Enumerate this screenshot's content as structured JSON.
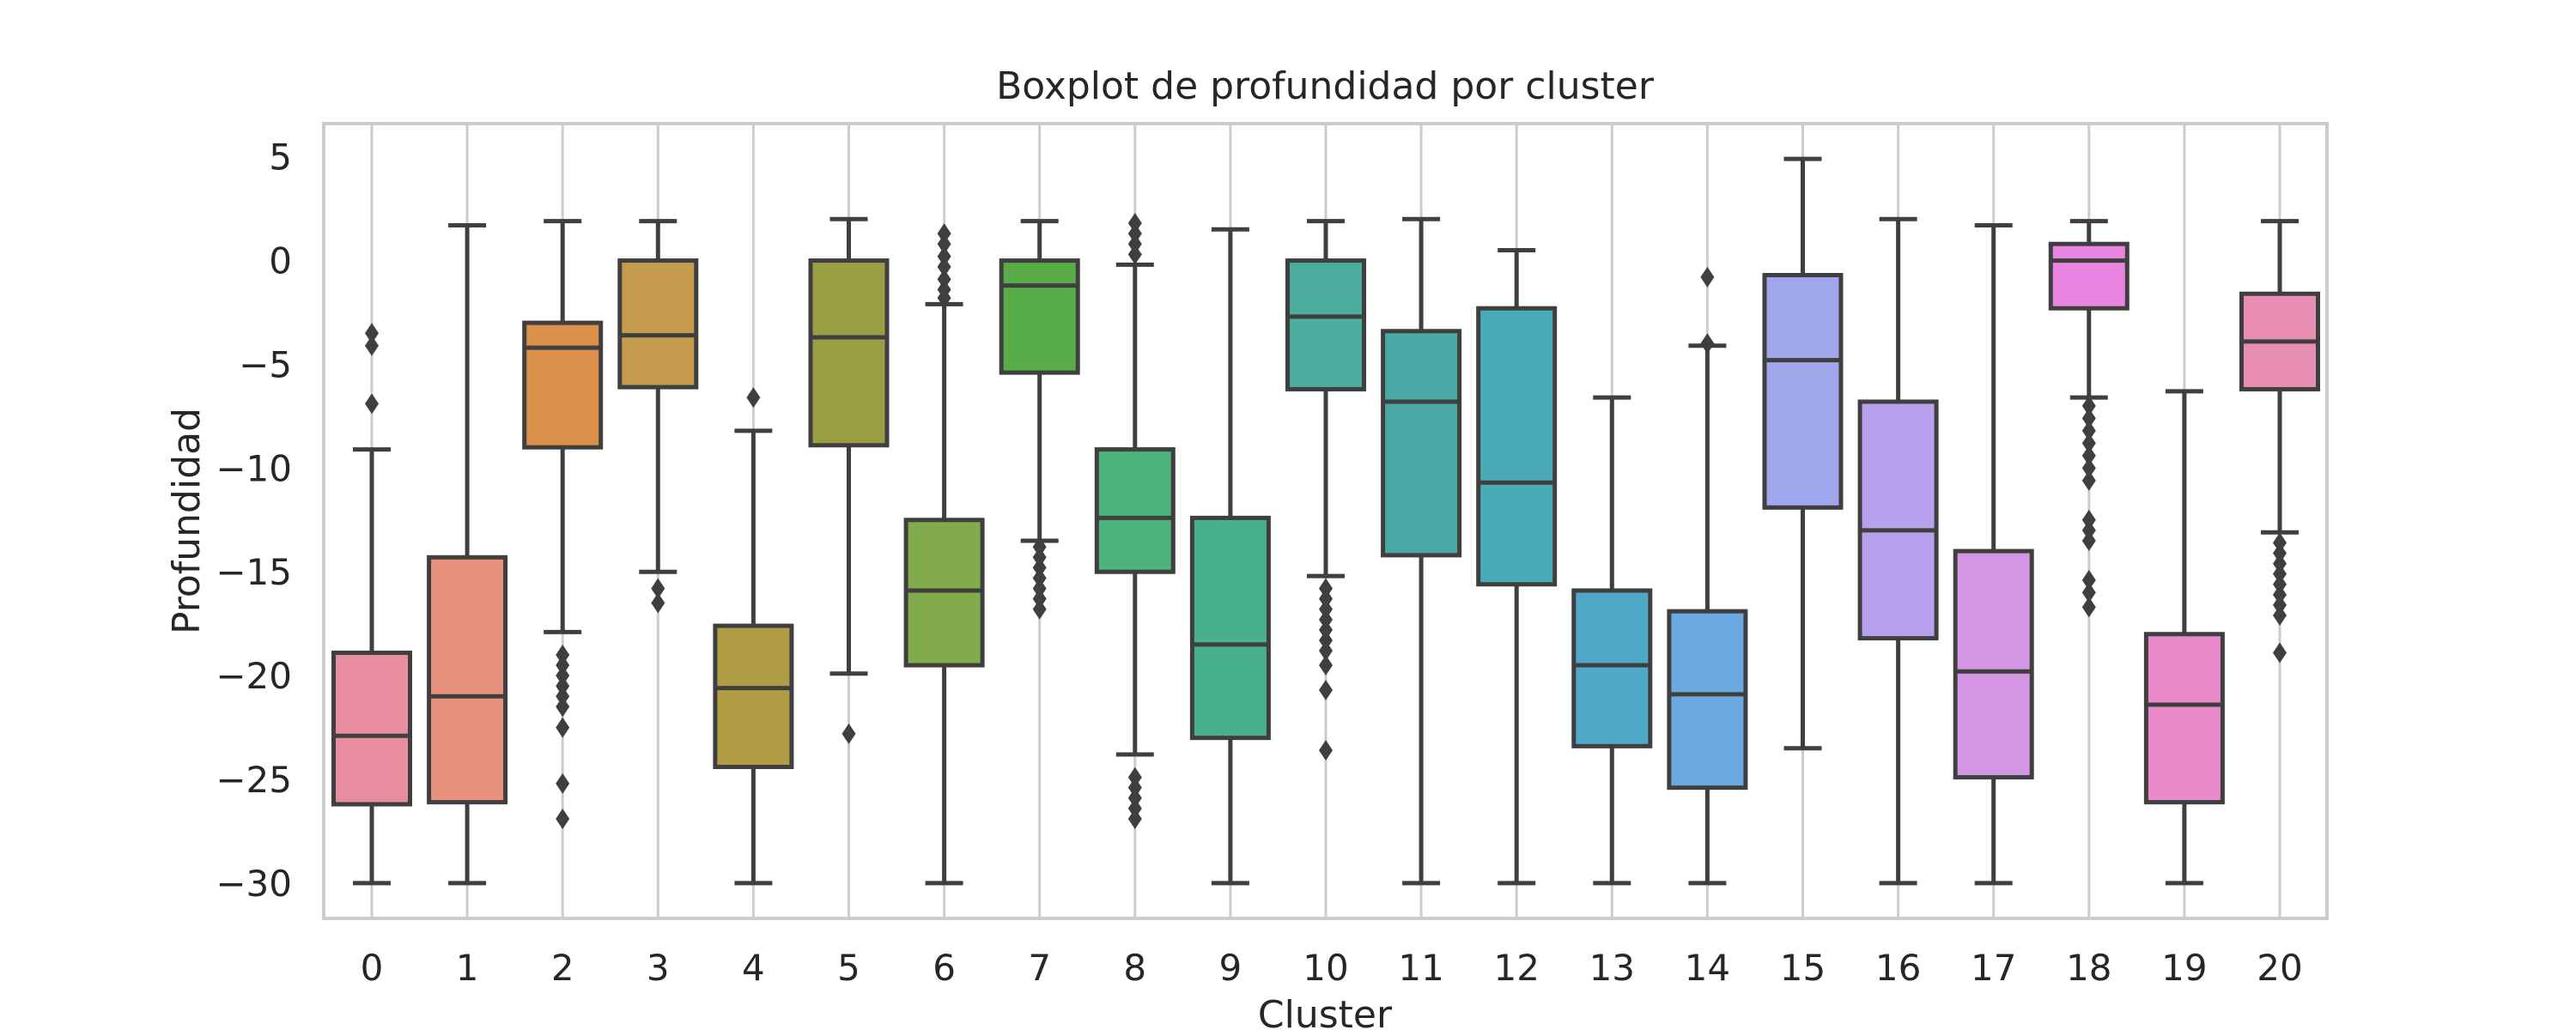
{
  "chart_data": {
    "type": "box",
    "title": "Boxplot de profundidad por cluster",
    "xlabel": "Cluster",
    "ylabel": "Profundidad",
    "ylim": [
      -31.7,
      6.6
    ],
    "yticks": [
      5,
      0,
      -5,
      -10,
      -15,
      -20,
      -25,
      -30
    ],
    "ytick_labels": [
      "5",
      "0",
      "−5",
      "−10",
      "−15",
      "−20",
      "−25",
      "−30"
    ],
    "grid": "vertical",
    "categories": [
      "0",
      "1",
      "2",
      "3",
      "4",
      "5",
      "6",
      "7",
      "8",
      "9",
      "10",
      "11",
      "12",
      "13",
      "14",
      "15",
      "16",
      "17",
      "18",
      "19",
      "20"
    ],
    "boxes": [
      {
        "cluster": "0",
        "whisker_low": -30,
        "q1": -26.2,
        "median": -22.9,
        "q3": -18.9,
        "whisker_high": -9.1,
        "outliers": [
          -3.5,
          -4.1,
          -6.9
        ],
        "color": "#e88ca0"
      },
      {
        "cluster": "1",
        "whisker_low": -30,
        "q1": -26.1,
        "median": -21.0,
        "q3": -14.3,
        "whisker_high": 1.7,
        "outliers": [],
        "color": "#e8917f"
      },
      {
        "cluster": "2",
        "whisker_low": -17.9,
        "q1": -9.0,
        "median": -4.2,
        "q3": -3.0,
        "whisker_high": 1.9,
        "outliers": [
          -19.0,
          -19.5,
          -20.0,
          -20.5,
          -21.0,
          -21.5,
          -22.5,
          -25.2,
          -26.9
        ],
        "color": "#d9904a"
      },
      {
        "cluster": "3",
        "whisker_low": -15.0,
        "q1": -6.1,
        "median": -3.6,
        "q3": 0.0,
        "whisker_high": 1.9,
        "outliers": [
          -15.8,
          -16.5
        ],
        "color": "#c59c4e"
      },
      {
        "cluster": "4",
        "whisker_low": -30,
        "q1": -24.4,
        "median": -20.6,
        "q3": -17.6,
        "whisker_high": -8.2,
        "outliers": [
          -6.6
        ],
        "color": "#b19c46"
      },
      {
        "cluster": "5",
        "whisker_low": -19.9,
        "q1": -8.9,
        "median": -3.7,
        "q3": 0.0,
        "whisker_high": 2.0,
        "outliers": [
          -22.8
        ],
        "color": "#9a9f43"
      },
      {
        "cluster": "6",
        "whisker_low": -30,
        "q1": -19.5,
        "median": -15.9,
        "q3": -12.5,
        "whisker_high": -2.1,
        "outliers": [
          1.3,
          0.8,
          0.2,
          -0.3,
          -0.9,
          -1.4,
          -1.8
        ],
        "color": "#82ab4c"
      },
      {
        "cluster": "7",
        "whisker_low": -13.5,
        "q1": -5.4,
        "median": -1.2,
        "q3": 0.0,
        "whisker_high": 1.9,
        "outliers": [
          -13.8,
          -14.3,
          -14.8,
          -15.3,
          -15.8,
          -16.3,
          -16.8
        ],
        "color": "#58ad48"
      },
      {
        "cluster": "8",
        "whisker_low": -23.8,
        "q1": -15.0,
        "median": -12.4,
        "q3": -9.1,
        "whisker_high": -0.2,
        "outliers": [
          1.8,
          1.3,
          0.8,
          0.3,
          -24.9,
          -25.4,
          -25.9,
          -26.4,
          -26.9
        ],
        "color": "#4cb37a"
      },
      {
        "cluster": "9",
        "whisker_low": -30,
        "q1": -23.0,
        "median": -18.5,
        "q3": -12.4,
        "whisker_high": 1.5,
        "outliers": [],
        "color": "#49b08d"
      },
      {
        "cluster": "10",
        "whisker_low": -15.2,
        "q1": -6.2,
        "median": -2.7,
        "q3": 0.0,
        "whisker_high": 1.9,
        "outliers": [
          -15.8,
          -16.3,
          -16.8,
          -17.3,
          -17.8,
          -18.3,
          -18.8,
          -19.5,
          -20.7,
          -23.6
        ],
        "color": "#4bad9e"
      },
      {
        "cluster": "11",
        "whisker_low": -30,
        "q1": -14.2,
        "median": -6.8,
        "q3": -3.4,
        "whisker_high": 2.0,
        "outliers": [],
        "color": "#49a9a5"
      },
      {
        "cluster": "12",
        "whisker_low": -30,
        "q1": -15.6,
        "median": -10.7,
        "q3": -2.3,
        "whisker_high": 0.5,
        "outliers": [],
        "color": "#4aaab5"
      },
      {
        "cluster": "13",
        "whisker_low": -30,
        "q1": -23.4,
        "median": -19.5,
        "q3": -15.9,
        "whisker_high": -6.6,
        "outliers": [],
        "color": "#4ea9c9"
      },
      {
        "cluster": "14",
        "whisker_low": -30,
        "q1": -25.4,
        "median": -20.9,
        "q3": -16.9,
        "whisker_high": -4.1,
        "outliers": [
          -0.8,
          -4.0
        ],
        "color": "#6aaae0"
      },
      {
        "cluster": "15",
        "whisker_low": -23.5,
        "q1": -11.9,
        "median": -4.8,
        "q3": -0.7,
        "whisker_high": 4.9,
        "outliers": [],
        "color": "#a0a6eb"
      },
      {
        "cluster": "16",
        "whisker_low": -30,
        "q1": -18.2,
        "median": -13.0,
        "q3": -6.8,
        "whisker_high": 2.0,
        "outliers": [],
        "color": "#b7a0ec"
      },
      {
        "cluster": "17",
        "whisker_low": -30,
        "q1": -24.9,
        "median": -19.8,
        "q3": -14.0,
        "whisker_high": 1.7,
        "outliers": [],
        "color": "#d495e3"
      },
      {
        "cluster": "18",
        "whisker_low": -6.6,
        "q1": -2.3,
        "median": 0.0,
        "q3": 0.8,
        "whisker_high": 1.9,
        "outliers": [
          -7.0,
          -7.6,
          -8.2,
          -8.8,
          -9.4,
          -10.0,
          -10.6,
          -12.5,
          -13.0,
          -13.5,
          -15.4,
          -16.0,
          -16.7
        ],
        "color": "#e985e0"
      },
      {
        "cluster": "19",
        "whisker_low": -30,
        "q1": -26.1,
        "median": -21.4,
        "q3": -18.0,
        "whisker_high": -6.3,
        "outliers": [],
        "color": "#e98bcb"
      },
      {
        "cluster": "20",
        "whisker_low": -13.1,
        "q1": -6.2,
        "median": -3.9,
        "q3": -1.6,
        "whisker_high": 1.9,
        "outliers": [
          -13.6,
          -14.1,
          -14.6,
          -15.1,
          -15.6,
          -16.1,
          -16.6,
          -17.1,
          -18.9
        ],
        "color": "#e98fb4"
      }
    ]
  }
}
